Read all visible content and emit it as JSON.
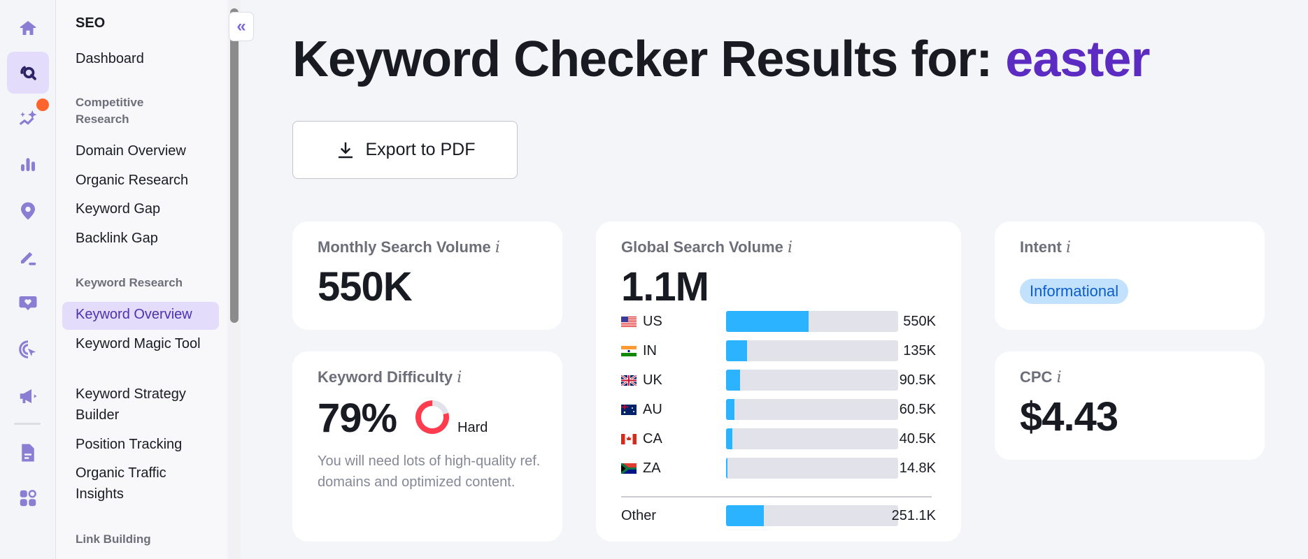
{
  "rail": {
    "icons": [
      "home-icon",
      "seo-icon",
      "ai-sparkle-icon",
      "bar-chart-icon",
      "location-pin-icon",
      "content-pen-icon",
      "heart-chat-icon",
      "click-target-icon",
      "megaphone-icon",
      "report-icon",
      "apps-icon"
    ],
    "active": "seo-icon",
    "accent": "#7a6ad6"
  },
  "sidebar": {
    "section": "SEO",
    "dashboard": "Dashboard",
    "group1": "Competitive Research",
    "group1_items": [
      "Domain Overview",
      "Organic Research",
      "Keyword Gap",
      "Backlink Gap"
    ],
    "group2": "Keyword Research",
    "group2_items": [
      "Keyword Overview",
      "Keyword Magic Tool",
      "Keyword Strategy Builder",
      "Position Tracking",
      "Organic Traffic Insights"
    ],
    "active_item": "Keyword Overview",
    "group3": "Link Building"
  },
  "header": {
    "title_prefix": "Keyword Checker Results for: ",
    "keyword": "easter",
    "export_label": "Export to PDF"
  },
  "monthly": {
    "label": "Monthly Search Volume",
    "value": "550K"
  },
  "difficulty": {
    "label": "Keyword Difficulty",
    "value": "79%",
    "percent": 79,
    "level": "Hard",
    "description": "You will need lots of high-quality ref. domains and optimized content.",
    "color": "#ff3b4e"
  },
  "global": {
    "label": "Global Search Volume",
    "value": "1.1M",
    "countries": [
      {
        "code": "US",
        "value": "550K",
        "share": 48
      },
      {
        "code": "IN",
        "value": "135K",
        "share": 12
      },
      {
        "code": "UK",
        "value": "90.5K",
        "share": 8
      },
      {
        "code": "AU",
        "value": "60.5K",
        "share": 5
      },
      {
        "code": "CA",
        "value": "40.5K",
        "share": 3.5
      },
      {
        "code": "ZA",
        "value": "14.8K",
        "share": 1
      }
    ],
    "other": {
      "label": "Other",
      "value": "251.1K",
      "share": 22
    },
    "bar_color": "#2bb3ff"
  },
  "intent": {
    "label": "Intent",
    "value": "Informational"
  },
  "cpc": {
    "label": "CPC",
    "value": "$4.43"
  }
}
